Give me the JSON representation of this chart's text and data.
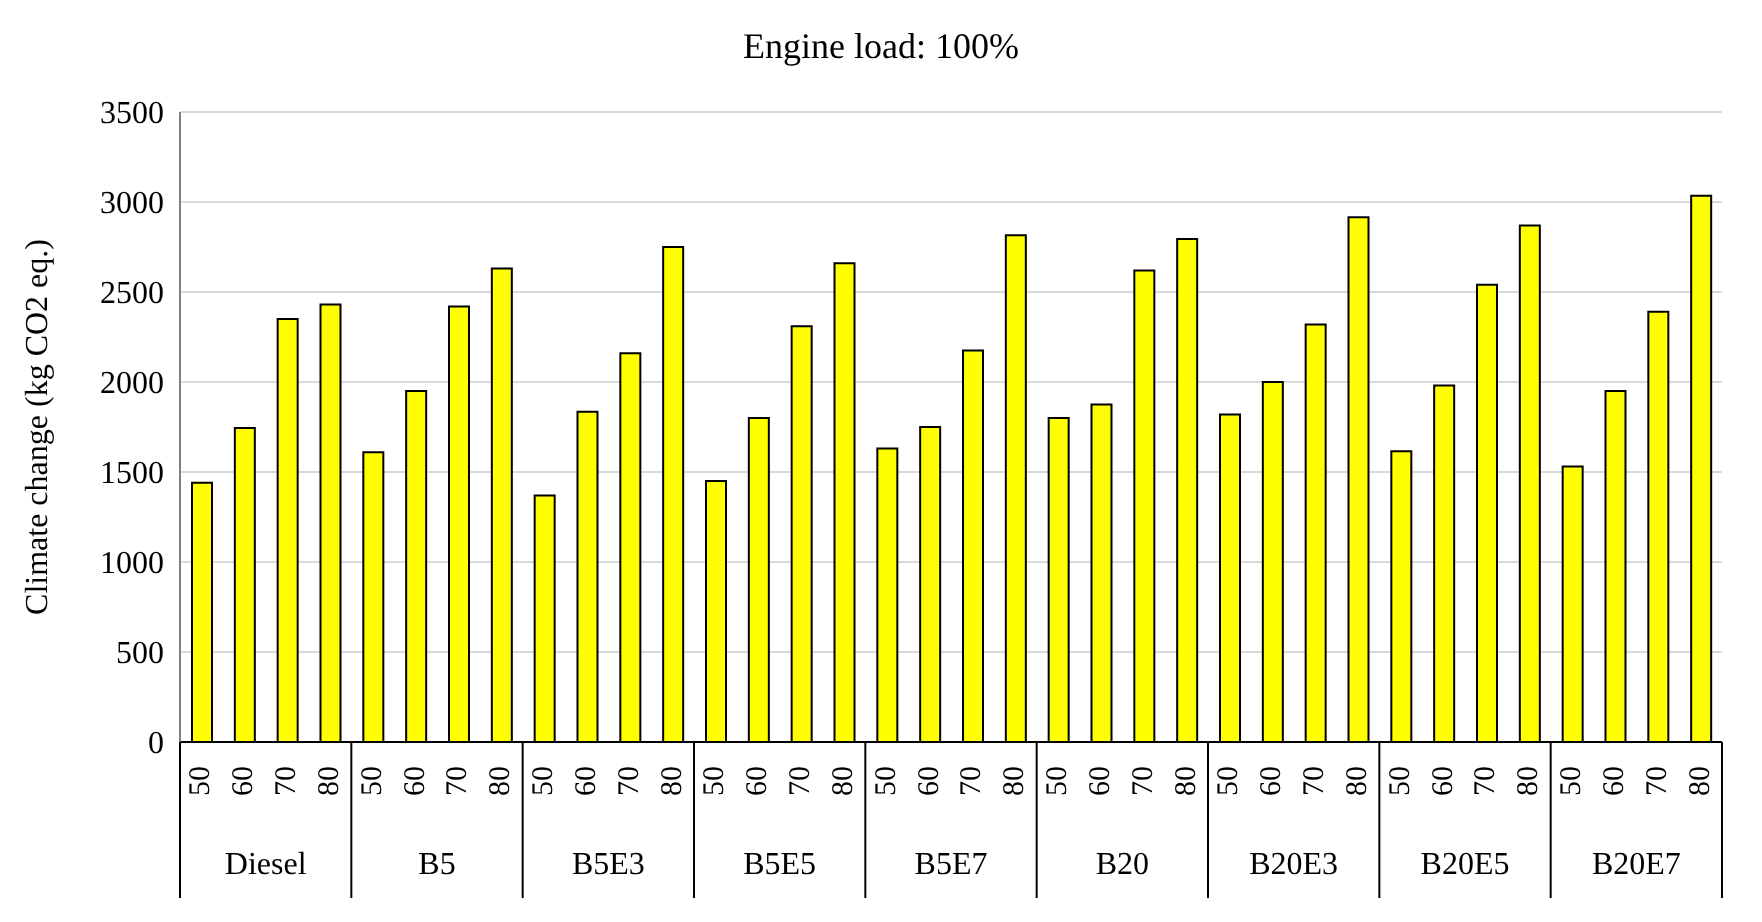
{
  "chart_data": {
    "type": "bar",
    "title": "Engine load: 100%",
    "ylabel": "Climate change (kg CO2 eq.)",
    "categories": [
      "50",
      "60",
      "70",
      "80",
      "50",
      "60",
      "70",
      "80",
      "50",
      "60",
      "70",
      "80",
      "50",
      "60",
      "70",
      "80",
      "50",
      "60",
      "70",
      "80",
      "50",
      "60",
      "70",
      "80",
      "50",
      "60",
      "70",
      "80",
      "50",
      "60",
      "70",
      "80",
      "50",
      "60",
      "70",
      "80"
    ],
    "values": [
      1440,
      1745,
      2350,
      2430,
      1610,
      1950,
      2420,
      2630,
      1370,
      1835,
      2160,
      2750,
      1450,
      1800,
      2310,
      2660,
      1630,
      1750,
      2175,
      2815,
      1800,
      1875,
      2620,
      2795,
      1820,
      2000,
      2320,
      2915,
      1615,
      1980,
      2540,
      2870,
      1530,
      1950,
      2390,
      3035
    ],
    "color": "#ffff00",
    "annotations": [
      "Diesel",
      "B5",
      "B5E3",
      "B5E5",
      "B5E7",
      "B20",
      "B20E3",
      "B20E5",
      "B20E7"
    ],
    "ylim": [
      0,
      3500
    ],
    "yticks": [
      0,
      500,
      1000,
      1500,
      2000,
      2500,
      3000,
      3500
    ],
    "grid": "y"
  }
}
